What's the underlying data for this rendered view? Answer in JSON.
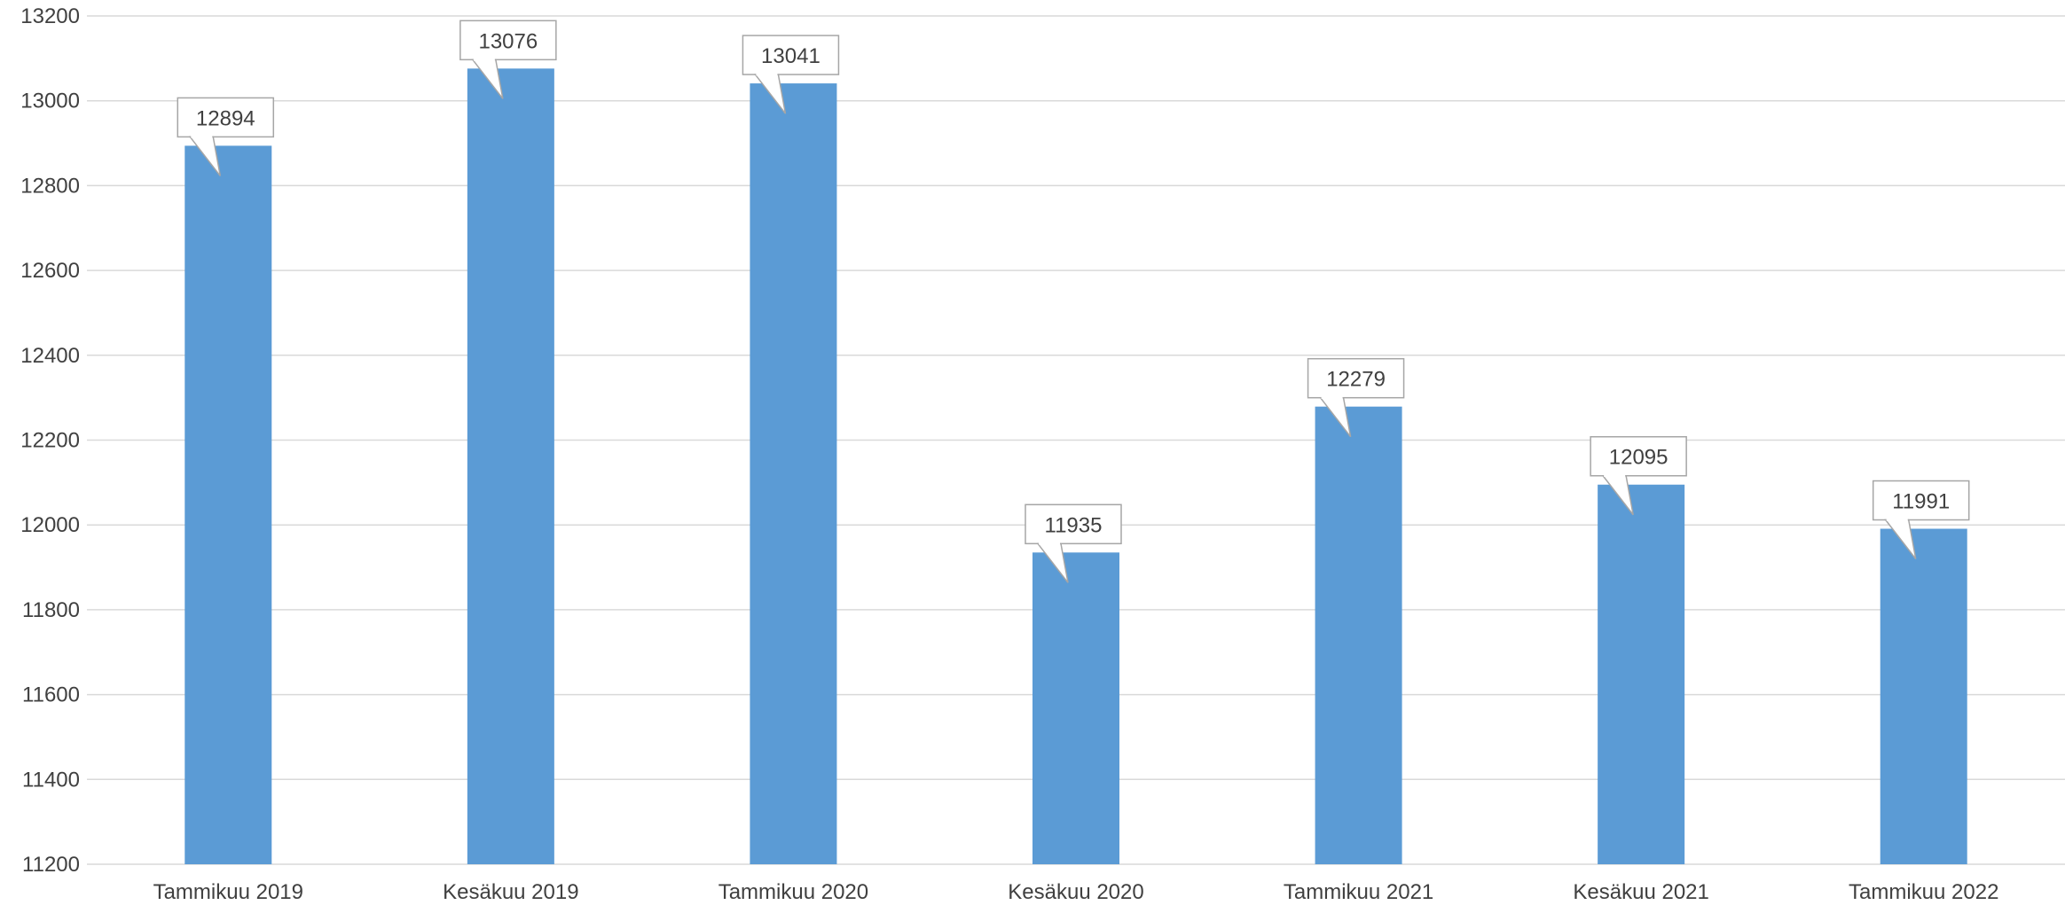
{
  "chart_data": {
    "type": "bar",
    "categories": [
      "Tammikuu 2019",
      "Kesäkuu 2019",
      "Tammikuu 2020",
      "Kesäkuu 2020",
      "Tammikuu 2021",
      "Kesäkuu 2021",
      "Tammikuu 2022"
    ],
    "values": [
      12894,
      13076,
      13041,
      11935,
      12279,
      12095,
      11991
    ],
    "title": "",
    "xlabel": "",
    "ylabel": "",
    "ylim": [
      11200,
      13200
    ],
    "yticks": [
      11200,
      11400,
      11600,
      11800,
      12000,
      12200,
      12400,
      12600,
      12800,
      13000,
      13200
    ],
    "grid": true,
    "legend": "none",
    "data_labels": true,
    "colors": {
      "bar": "#5b9bd5",
      "grid": "#d9d9d9",
      "text": "#404040",
      "label_border": "#a6a6a6"
    }
  }
}
